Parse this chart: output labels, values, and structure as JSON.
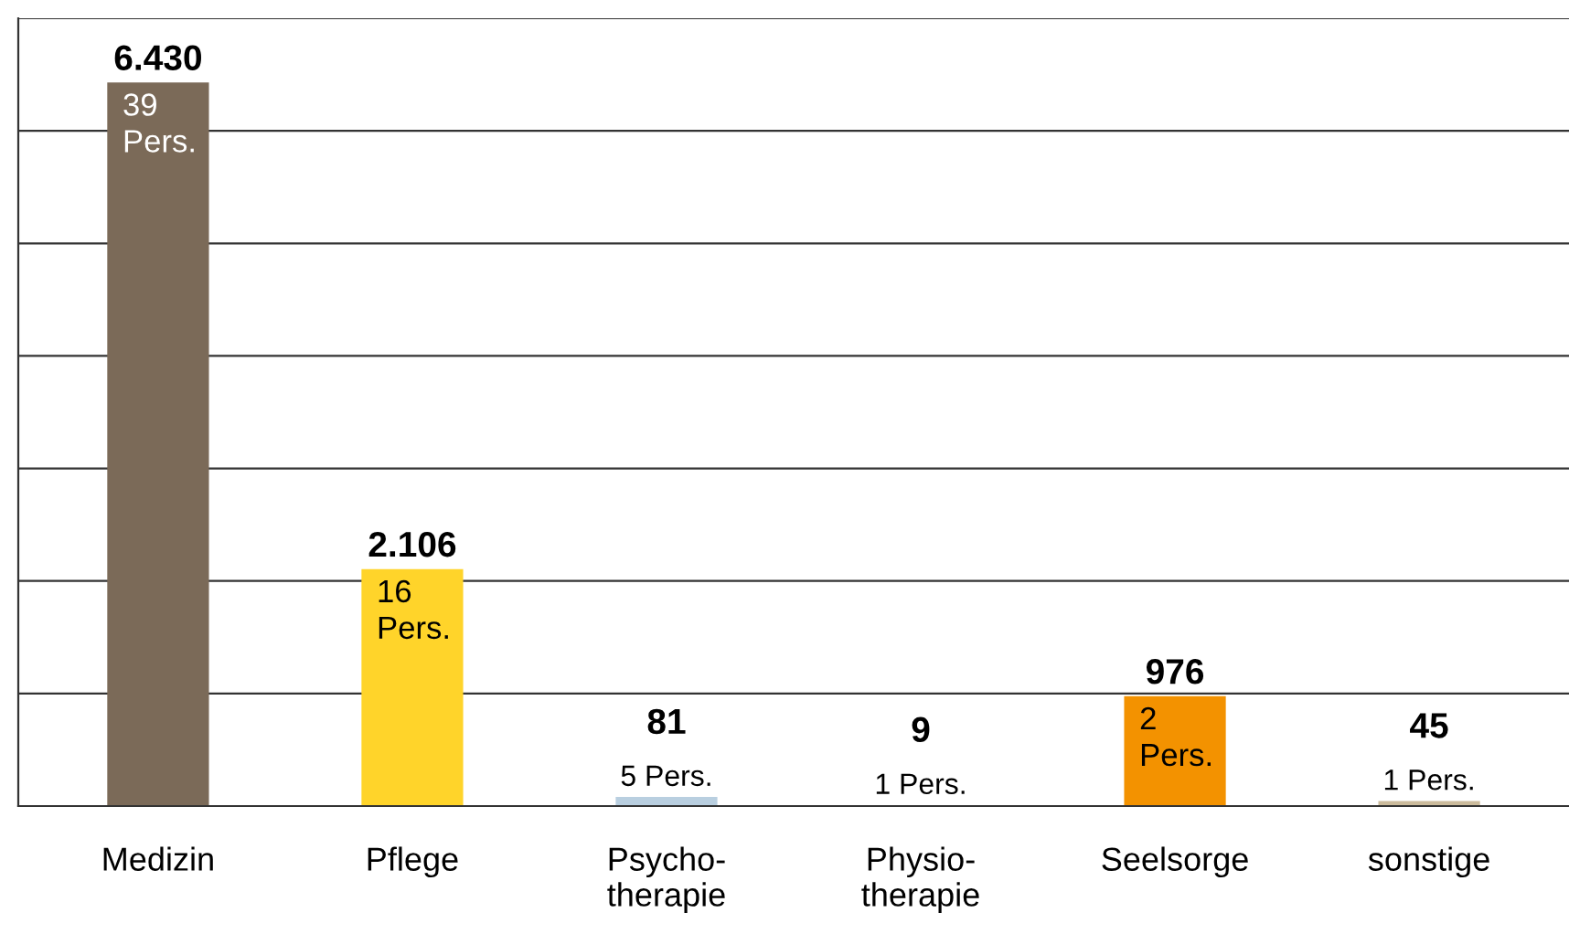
{
  "chart_data": {
    "type": "bar",
    "categories": [
      "Medizin",
      "Pflege",
      "Psycho-\ntherapie",
      "Physio-\ntherapie",
      "Seelsorge",
      "sonstige"
    ],
    "values": [
      6430,
      2106,
      81,
      9,
      976,
      45
    ],
    "colors": [
      "#7b6a58",
      "#ffd42a",
      "#b9cfe0",
      "#c9c9c9",
      "#f39200",
      "#cbbb9c"
    ],
    "value_labels": [
      "6.430",
      "2.106",
      "81",
      "9",
      "976",
      "45"
    ],
    "annotations": [
      {
        "text": "39 Pers.",
        "x": "Medizin",
        "y": 6430
      },
      {
        "text": "16 Pers.",
        "x": "Pflege",
        "y": 2106
      },
      {
        "text": "5 Pers.",
        "x": "Psycho-\ntherapie",
        "y": 81
      },
      {
        "text": "1 Pers.",
        "x": "Physio-\ntherapie",
        "y": 9
      },
      {
        "text": "2 Pers.",
        "x": "Seelsorge",
        "y": 976
      },
      {
        "text": "1 Pers.",
        "x": "sonstige",
        "y": 45
      }
    ],
    "ylim": [
      0,
      7000
    ],
    "yticks": [
      {
        "value": 0,
        "label": null
      },
      {
        "value": 1000,
        "label": null
      },
      {
        "value": 2000,
        "label": null
      },
      {
        "value": 3000,
        "label": null
      },
      {
        "value": 4000,
        "label": null
      },
      {
        "value": 5000,
        "label": null
      },
      {
        "value": 6000,
        "label": null
      },
      {
        "value": 7000,
        "label": null
      }
    ],
    "grid": "y",
    "tick_labels": "x"
  }
}
